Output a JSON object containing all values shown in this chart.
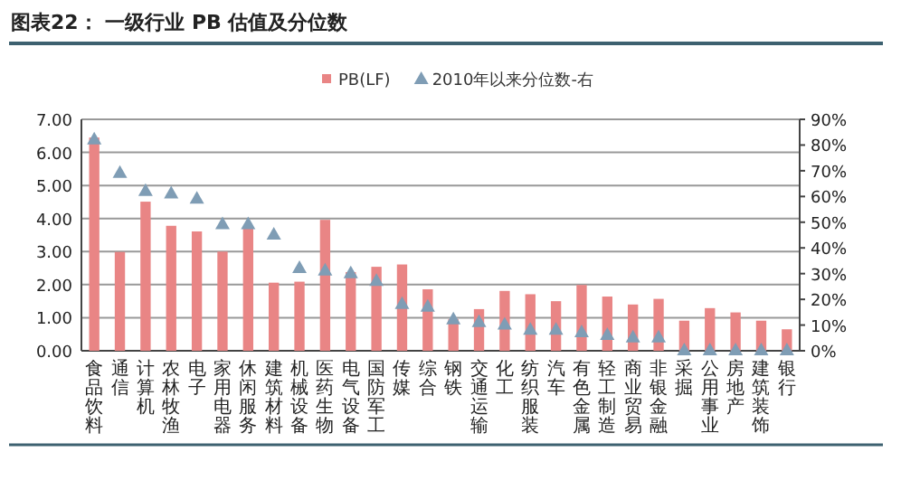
{
  "chart_data": {
    "type": "bar",
    "title": "图表22： 一级行业 PB 估值及分位数",
    "categories": [
      "食品饮料",
      "通信",
      "计算机",
      "农林牧渔",
      "电子",
      "家用电器",
      "休闲服务",
      "建筑材料",
      "机械设备",
      "医药生物",
      "电气设备",
      "国防军工",
      "传媒",
      "综合",
      "钢铁",
      "交通运输",
      "化工",
      "纺织服装",
      "汽车",
      "有色金属",
      "轻工制造",
      "商业贸易",
      "非银金融",
      "采掘",
      "公用事业",
      "房地产",
      "建筑装饰",
      "银行"
    ],
    "series": [
      {
        "name": "PB(LF)",
        "color": "#e98585",
        "values": [
          6.45,
          2.99,
          4.51,
          3.78,
          3.61,
          3.0,
          3.72,
          2.06,
          2.09,
          3.96,
          2.38,
          2.54,
          2.61,
          1.86,
          0.96,
          1.26,
          1.81,
          1.71,
          1.5,
          1.99,
          1.64,
          1.4,
          1.57,
          0.91,
          1.29,
          1.16,
          0.91,
          0.65
        ]
      },
      {
        "name": "2010年以来分位数-右",
        "color": "#7f9db5",
        "type": "scatter",
        "axis": "y2",
        "marker": "triangle",
        "values": [
          82,
          69,
          62,
          61,
          59,
          49,
          49,
          45,
          32,
          31,
          30,
          27,
          18,
          17,
          12,
          11,
          10,
          8,
          8,
          7,
          6,
          5,
          5,
          0,
          0,
          0,
          0,
          0
        ]
      }
    ],
    "ylim": [
      0,
      7
    ],
    "yticks": [
      {
        "value": 0,
        "label": "0.00"
      },
      {
        "value": 1,
        "label": "1.00"
      },
      {
        "value": 2,
        "label": "2.00"
      },
      {
        "value": 3,
        "label": "3.00"
      },
      {
        "value": 4,
        "label": "4.00"
      },
      {
        "value": 5,
        "label": "5.00"
      },
      {
        "value": 6,
        "label": "6.00"
      },
      {
        "value": 7,
        "label": "7.00"
      }
    ],
    "y2lim": [
      0,
      90
    ],
    "y2ticks": [
      {
        "value": 0,
        "label": "0%"
      },
      {
        "value": 10,
        "label": "10%"
      },
      {
        "value": 20,
        "label": "20%"
      },
      {
        "value": 30,
        "label": "30%"
      },
      {
        "value": 40,
        "label": "40%"
      },
      {
        "value": 50,
        "label": "50%"
      },
      {
        "value": 60,
        "label": "60%"
      },
      {
        "value": 70,
        "label": "70%"
      },
      {
        "value": 80,
        "label": "80%"
      },
      {
        "value": 90,
        "label": "90%"
      }
    ],
    "grid": "y",
    "legend": "top"
  }
}
